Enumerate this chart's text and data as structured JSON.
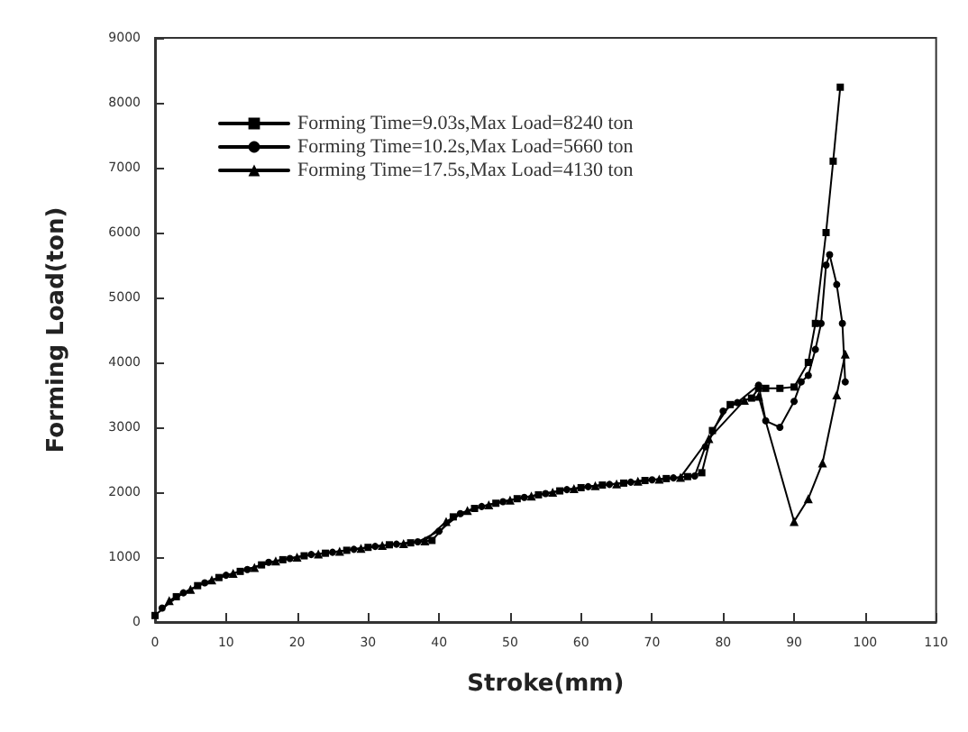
{
  "chart_data": {
    "type": "line",
    "xlabel": "Stroke(mm)",
    "ylabel": "Forming Load(ton)",
    "xlim": [
      0,
      110
    ],
    "xticks": [
      0,
      10,
      20,
      30,
      40,
      50,
      60,
      70,
      80,
      90,
      100,
      110
    ],
    "ylim": [
      0,
      9000
    ],
    "yticks": [
      0,
      1000,
      2000,
      3000,
      4000,
      5000,
      6000,
      7000,
      8000,
      9000
    ],
    "grid": false,
    "legend": "top left",
    "line_style": "solid",
    "series": [
      {
        "name": "Forming Time=9.03s,Max Load=8240 ton",
        "color": "#000000",
        "marker": "square",
        "x": [
          0,
          3,
          6,
          9,
          12,
          15,
          18,
          21,
          24,
          27,
          30,
          33,
          36,
          39,
          42,
          45,
          48,
          51,
          54,
          57,
          60,
          63,
          66,
          69,
          72,
          75,
          77,
          78.5,
          81,
          84,
          85,
          86,
          88,
          90,
          92,
          93,
          94.5,
          95.5,
          96.5
        ],
        "values": [
          100,
          390,
          560,
          685,
          780,
          880,
          960,
          1020,
          1060,
          1105,
          1150,
          1190,
          1220,
          1257,
          1620,
          1750,
          1830,
          1900,
          1960,
          2020,
          2070,
          2110,
          2140,
          2180,
          2210,
          2240,
          2300,
          2950,
          3350,
          3450,
          3600,
          3600,
          3600,
          3620,
          4000,
          4600,
          6000,
          7100,
          8240
        ]
      },
      {
        "name": "Forming Time=10.2s,Max Load=5660 ton",
        "color": "#000000",
        "marker": "circle",
        "x": [
          1,
          4,
          7,
          10,
          13,
          16,
          19,
          22,
          25,
          28,
          31,
          34,
          37,
          40,
          43,
          46,
          49,
          52,
          55,
          58,
          61,
          64,
          67,
          70,
          73,
          76,
          77.5,
          80,
          82,
          85,
          86,
          88,
          90,
          91,
          92,
          93,
          93.8,
          94.5,
          95,
          96,
          96.8,
          97.2
        ],
        "values": [
          215,
          450,
          605,
          720,
          810,
          920,
          980,
          1040,
          1075,
          1120,
          1165,
          1200,
          1235,
          1400,
          1670,
          1780,
          1855,
          1920,
          1980,
          2040,
          2085,
          2120,
          2155,
          2190,
          2220,
          2250,
          2700,
          3250,
          3380,
          3650,
          3100,
          3000,
          3400,
          3700,
          3800,
          4200,
          4600,
          5500,
          5660,
          5200,
          4600,
          3700
        ]
      },
      {
        "name": "Forming Time=17.5s,Max Load=4130 ton",
        "color": "#000000",
        "marker": "triangle",
        "x": [
          2,
          5,
          8,
          11,
          14,
          17,
          20,
          23,
          26,
          29,
          32,
          35,
          38,
          41,
          44,
          47,
          50,
          53,
          56,
          59,
          62,
          65,
          68,
          71,
          74,
          78,
          83,
          85,
          90,
          92,
          94,
          96,
          97.2
        ],
        "values": [
          330,
          505,
          650,
          750,
          840,
          940,
          1000,
          1050,
          1090,
          1135,
          1180,
          1210,
          1250,
          1550,
          1720,
          1805,
          1880,
          1940,
          2000,
          2055,
          2100,
          2130,
          2170,
          2200,
          2230,
          2825,
          3415,
          3480,
          1550,
          1900,
          2450,
          3500,
          4130
        ]
      }
    ]
  }
}
